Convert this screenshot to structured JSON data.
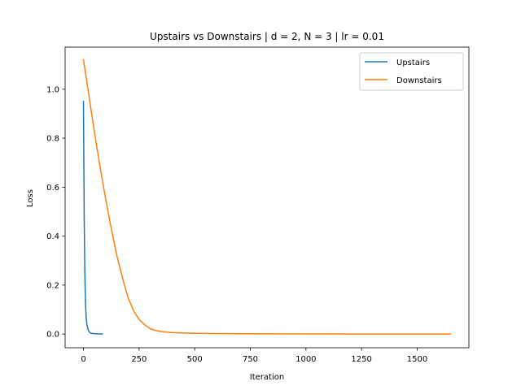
{
  "chart_data": {
    "type": "line",
    "title": "Upstairs vs Downstairs | d = 2, N = 3 | lr = 0.01",
    "xlabel": "Iteration",
    "ylabel": "Loss",
    "xlim": [
      -82.5,
      1732.5
    ],
    "ylim": [
      -0.056,
      1.172
    ],
    "xticks": [
      0,
      250,
      500,
      750,
      1000,
      1250,
      1500
    ],
    "xtick_labels": [
      "0",
      "250",
      "500",
      "750",
      "1000",
      "1250",
      "1500"
    ],
    "yticks": [
      0.0,
      0.2,
      0.4,
      0.6,
      0.8,
      1.0
    ],
    "ytick_labels": [
      "0.0",
      "0.2",
      "0.4",
      "0.6",
      "0.8",
      "1.0"
    ],
    "grid": false,
    "legend_position": "upper right",
    "series": [
      {
        "name": "Upstairs",
        "color": "#1f77b4",
        "points": [
          [
            0,
            0.95
          ],
          [
            3,
            0.5
          ],
          [
            6,
            0.26
          ],
          [
            9,
            0.13
          ],
          [
            12,
            0.07
          ],
          [
            15,
            0.04
          ],
          [
            20,
            0.02
          ],
          [
            25,
            0.01
          ],
          [
            30,
            0.005
          ],
          [
            40,
            0.002
          ],
          [
            60,
            0.001
          ],
          [
            85,
            0.0
          ]
        ]
      },
      {
        "name": "Downstairs",
        "color": "#ff7f0e",
        "points": [
          [
            0,
            1.12
          ],
          [
            25,
            0.97
          ],
          [
            50,
            0.82
          ],
          [
            75,
            0.68
          ],
          [
            100,
            0.55
          ],
          [
            125,
            0.43
          ],
          [
            150,
            0.32
          ],
          [
            175,
            0.23
          ],
          [
            200,
            0.15
          ],
          [
            225,
            0.095
          ],
          [
            250,
            0.06
          ],
          [
            275,
            0.038
          ],
          [
            300,
            0.022
          ],
          [
            325,
            0.014
          ],
          [
            350,
            0.01
          ],
          [
            400,
            0.006
          ],
          [
            450,
            0.004
          ],
          [
            500,
            0.003
          ],
          [
            600,
            0.002
          ],
          [
            800,
            0.001
          ],
          [
            1000,
            0.0005
          ],
          [
            1250,
            0.0002
          ],
          [
            1500,
            0.0001
          ],
          [
            1650,
            0.0
          ]
        ]
      }
    ]
  }
}
